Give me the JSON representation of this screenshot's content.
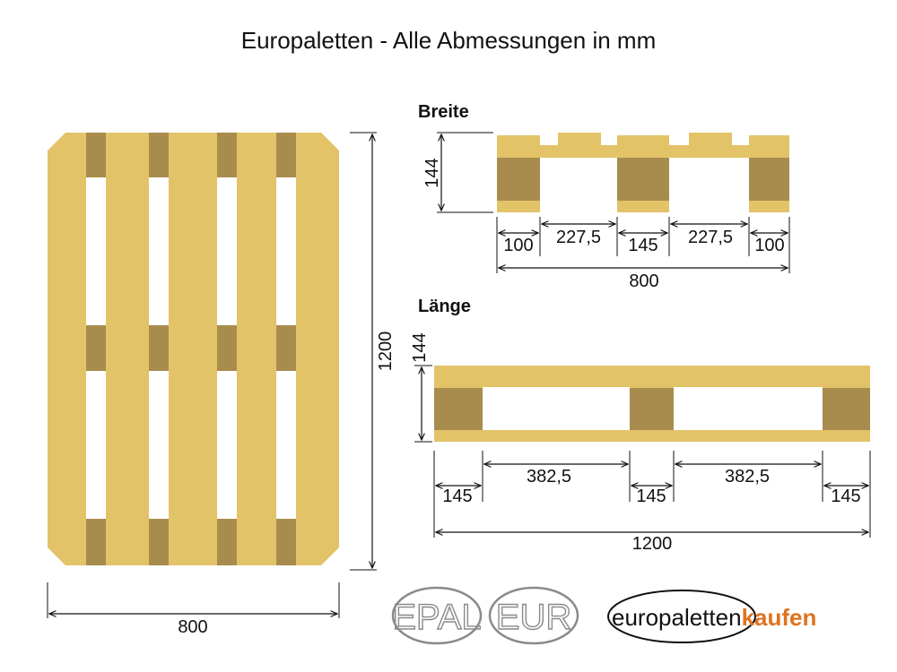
{
  "title": "Europaletten - Alle Abmessungen in mm",
  "colors": {
    "wood": "#e3c368",
    "block": "#a88c4e",
    "line": "#111111",
    "logo_gray": "#8a8a8a",
    "logo_orange": "#e0731f"
  },
  "top_view": {
    "width_label": "800",
    "height_label": "1200"
  },
  "breite": {
    "heading": "Breite",
    "height_label": "144",
    "segments": [
      "100",
      "227,5",
      "145",
      "227,5",
      "100"
    ],
    "total": "800"
  },
  "laenge": {
    "heading": "Länge",
    "height_label": "144",
    "segments": [
      "145",
      "382,5",
      "145",
      "382,5",
      "145"
    ],
    "total": "1200"
  },
  "logos": {
    "epal": "EPAL",
    "eur": "EUR",
    "brand_part1": "europaletten",
    "brand_part2": "kaufen"
  }
}
